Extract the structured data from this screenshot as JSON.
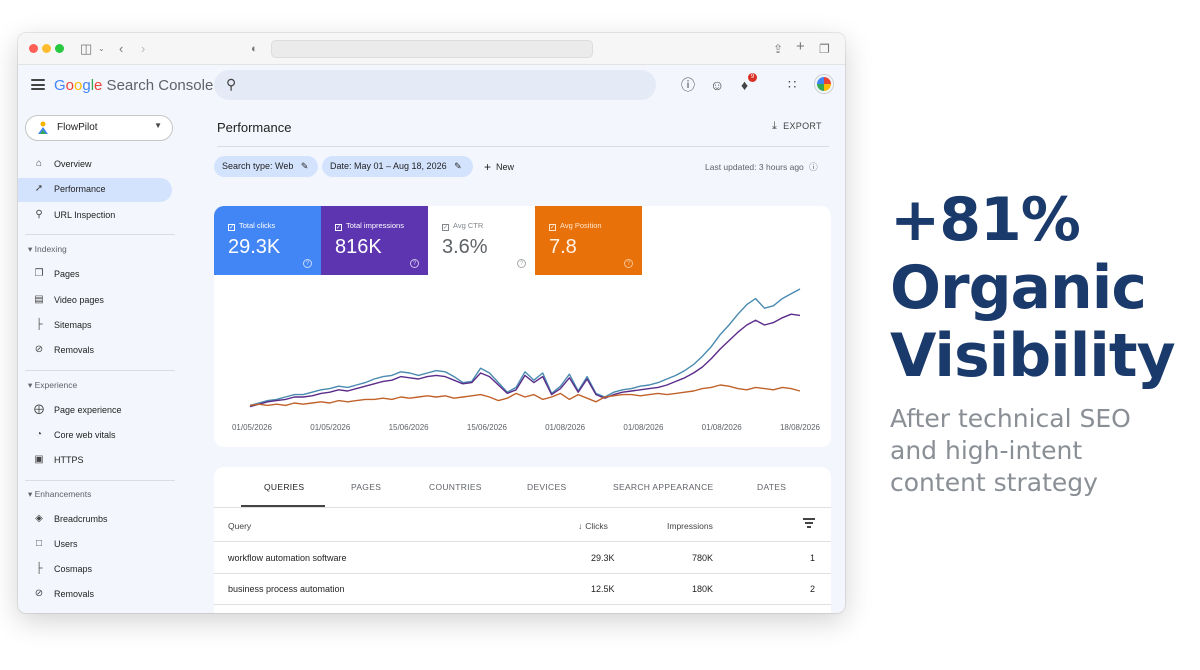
{
  "app": {
    "logo_parts": [
      "G",
      "o",
      "o",
      "g",
      "l",
      "e"
    ],
    "logo_rest": " Search Console",
    "search_placeholder": "",
    "header_icons": [
      "help-icon",
      "manage-accounts-icon",
      "bell-icon",
      "apps-grid-icon"
    ],
    "notification_count": "9"
  },
  "sidebar": {
    "property": "FlowPilot",
    "top_items": [
      {
        "label": "Overview",
        "icon": "home-icon",
        "active": false
      },
      {
        "label": "Performance",
        "icon": "trending-icon",
        "active": true
      },
      {
        "label": "URL Inspection",
        "icon": "search-icon",
        "active": false
      }
    ],
    "sections": [
      {
        "title": "Indexing",
        "items": [
          {
            "label": "Pages",
            "icon": "pages-icon"
          },
          {
            "label": "Video pages",
            "icon": "video-pages-icon"
          },
          {
            "label": "Sitemaps",
            "icon": "sitemap-icon"
          },
          {
            "label": "Removals",
            "icon": "eye-off-icon"
          }
        ]
      },
      {
        "title": "Experience",
        "items": [
          {
            "label": "Page experience",
            "icon": "page-experience-icon"
          },
          {
            "label": "Core web vitals",
            "icon": "gauge-icon"
          },
          {
            "label": "HTTPS",
            "icon": "lock-icon"
          }
        ]
      },
      {
        "title": "Enhancements",
        "items": [
          {
            "label": "Breadcrumbs",
            "icon": "layers-icon"
          },
          {
            "label": "Users",
            "icon": "users-icon"
          },
          {
            "label": "Cosmaps",
            "icon": "sitemap-icon"
          },
          {
            "label": "Removals",
            "icon": "eye-off-icon"
          }
        ]
      }
    ]
  },
  "main": {
    "title": "Performance",
    "export_label": "EXPORT",
    "filters": {
      "search_type": "Search type: Web",
      "date": "Date: May 01 – Aug 18, 2026",
      "new_label": "New"
    },
    "last_updated": "Last updated: 3 hours ago"
  },
  "metrics": [
    {
      "label": "Total clicks",
      "value": "29.3K",
      "color": "#4285f4",
      "selected": true
    },
    {
      "label": "Total impressions",
      "value": "816K",
      "color": "#5e35b1",
      "selected": true
    },
    {
      "label": "Avg CTR",
      "value": "3.6%",
      "color": "#ffffff",
      "selected": false
    },
    {
      "label": "Avg Position",
      "value": "7.8",
      "color": "#e8710a",
      "selected": true
    }
  ],
  "chart_data": {
    "type": "line",
    "x_tick_labels": [
      "01/05/2026",
      "01/05/2026",
      "15/06/2026",
      "15/06/2026",
      "01/08/2026",
      "01/08/2026",
      "01/08/2026",
      "18/08/2026"
    ],
    "series": [
      {
        "name": "Total clicks",
        "color": "#4a8ab0",
        "values": [
          0.03,
          0.05,
          0.07,
          0.08,
          0.1,
          0.12,
          0.12,
          0.14,
          0.16,
          0.17,
          0.19,
          0.18,
          0.2,
          0.22,
          0.25,
          0.27,
          0.28,
          0.31,
          0.3,
          0.28,
          0.3,
          0.32,
          0.31,
          0.27,
          0.22,
          0.23,
          0.34,
          0.3,
          0.22,
          0.14,
          0.18,
          0.31,
          0.24,
          0.3,
          0.13,
          0.19,
          0.29,
          0.15,
          0.27,
          0.13,
          0.1,
          0.14,
          0.16,
          0.17,
          0.19,
          0.2,
          0.22,
          0.25,
          0.28,
          0.32,
          0.37,
          0.44,
          0.52,
          0.62,
          0.7,
          0.79,
          0.87,
          0.92,
          0.84,
          0.86,
          0.92,
          0.96,
          1.0
        ]
      },
      {
        "name": "Total impressions",
        "color": "#5b2c8a",
        "values": [
          0.02,
          0.04,
          0.06,
          0.07,
          0.08,
          0.1,
          0.1,
          0.11,
          0.13,
          0.14,
          0.16,
          0.15,
          0.17,
          0.19,
          0.21,
          0.23,
          0.24,
          0.27,
          0.26,
          0.25,
          0.27,
          0.28,
          0.27,
          0.24,
          0.21,
          0.22,
          0.3,
          0.27,
          0.2,
          0.13,
          0.16,
          0.28,
          0.22,
          0.27,
          0.12,
          0.17,
          0.26,
          0.14,
          0.25,
          0.12,
          0.09,
          0.12,
          0.14,
          0.15,
          0.16,
          0.17,
          0.18,
          0.2,
          0.23,
          0.26,
          0.3,
          0.35,
          0.42,
          0.5,
          0.57,
          0.64,
          0.7,
          0.74,
          0.7,
          0.72,
          0.76,
          0.79,
          0.78
        ]
      },
      {
        "name": "Avg Position",
        "color": "#c0622a",
        "values": [
          0.03,
          0.04,
          0.03,
          0.04,
          0.03,
          0.05,
          0.04,
          0.05,
          0.06,
          0.05,
          0.07,
          0.06,
          0.07,
          0.08,
          0.08,
          0.09,
          0.08,
          0.1,
          0.09,
          0.1,
          0.11,
          0.1,
          0.11,
          0.09,
          0.1,
          0.11,
          0.12,
          0.1,
          0.07,
          0.09,
          0.13,
          0.1,
          0.12,
          0.08,
          0.1,
          0.13,
          0.08,
          0.12,
          0.09,
          0.06,
          0.1,
          0.11,
          0.12,
          0.12,
          0.11,
          0.12,
          0.13,
          0.12,
          0.13,
          0.14,
          0.15,
          0.17,
          0.18,
          0.2,
          0.19,
          0.17,
          0.16,
          0.18,
          0.17,
          0.16,
          0.18,
          0.17,
          0.15
        ]
      }
    ]
  },
  "table": {
    "tabs": [
      {
        "label": "QUERIES",
        "active": true
      },
      {
        "label": "PAGES",
        "active": false
      },
      {
        "label": "COUNTRIES",
        "active": false
      },
      {
        "label": "DEVICES",
        "active": false
      },
      {
        "label": "SEARCH APPEARANCE",
        "active": false
      },
      {
        "label": "DATES",
        "active": false
      }
    ],
    "columns": {
      "query": "Query",
      "clicks": "Clicks",
      "impressions": "Impressions"
    },
    "rows": [
      {
        "query": "workflow automation software",
        "clicks": "29.3K",
        "impressions": "780K",
        "position": "1"
      },
      {
        "query": "business process automation",
        "clicks": "12.5K",
        "impressions": "180K",
        "position": "2"
      }
    ]
  },
  "headline": {
    "lines": [
      "+81%",
      "Organic",
      "Visibility"
    ],
    "sub_lines": [
      "After technical SEO",
      "and high-intent",
      "content strategy"
    ],
    "color": "#1a3a6b"
  }
}
